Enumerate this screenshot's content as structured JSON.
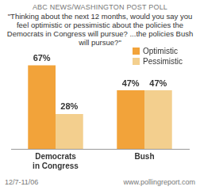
{
  "chart_data": {
    "type": "bar",
    "title": "ABC NEWS/WASHINGTON POST POLL",
    "subtitle": "\"Thinking about the next 12 months, would you say you feel optimistic or pessimistic about the policies the Democrats in Congress will pursue? ...the policies Bush will pursue?\"",
    "categories": [
      "Democrats in Congress",
      "Bush"
    ],
    "series": [
      {
        "name": "Optimistic",
        "color": "#f2a33a",
        "values": [
          67,
          47
        ],
        "value_labels": [
          "67%",
          "47%"
        ]
      },
      {
        "name": "Pessimistic",
        "color": "#f3cf8e",
        "values": [
          28,
          47
        ],
        "value_labels": [
          "28%",
          "47%"
        ]
      }
    ],
    "ylim": [
      0,
      80
    ],
    "grid": false,
    "legend": "upper right",
    "data_labels": true,
    "tick_labels": "x",
    "annotations": [
      "12/7-11/06",
      "www.pollingreport.com"
    ]
  }
}
